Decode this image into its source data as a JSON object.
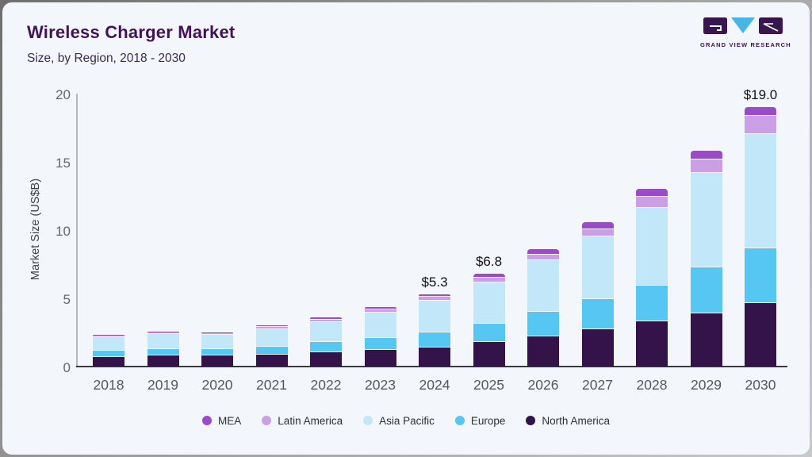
{
  "header": {
    "title": "Wireless Charger Market",
    "subtitle": "Size, by Region, 2018 - 2030",
    "logo_brand": "GRAND VIEW RESEARCH"
  },
  "colors": {
    "panel_bg": "#f3f6fa",
    "title_text": "#421359",
    "logo_purple": "#3a1650",
    "logo_blue": "#45b6e6",
    "axis_line": "#3a3940",
    "gridless_axis": "#b2b7bc"
  },
  "chart_data": {
    "type": "bar",
    "stacked": true,
    "title": "Wireless Charger Market",
    "subtitle": "Size, by Region, 2018 - 2030",
    "xlabel": "",
    "ylabel": "Market Size (US$B)",
    "ylim": [
      0,
      20
    ],
    "yticks": [
      0,
      5,
      10,
      15,
      20
    ],
    "grid": false,
    "legend_position": "bottom",
    "categories": [
      "2018",
      "2019",
      "2020",
      "2021",
      "2022",
      "2023",
      "2024",
      "2025",
      "2026",
      "2027",
      "2028",
      "2029",
      "2030"
    ],
    "series": [
      {
        "name": "North America",
        "color": "#331349",
        "values": [
          0.7,
          0.8,
          0.8,
          0.85,
          1.05,
          1.2,
          1.4,
          1.8,
          2.2,
          2.75,
          3.3,
          3.9,
          4.65
        ]
      },
      {
        "name": "Europe",
        "color": "#56c7f2",
        "values": [
          0.45,
          0.5,
          0.5,
          0.6,
          0.75,
          0.9,
          1.1,
          1.35,
          1.8,
          2.2,
          2.65,
          3.35,
          4.0
        ]
      },
      {
        "name": "Asia Pacific",
        "color": "#c2e7f8",
        "values": [
          1.0,
          1.1,
          1.05,
          1.3,
          1.45,
          1.85,
          2.3,
          3.0,
          3.8,
          4.6,
          5.7,
          6.95,
          8.4
        ]
      },
      {
        "name": "Latin America",
        "color": "#cb9fe5",
        "values": [
          0.1,
          0.1,
          0.1,
          0.15,
          0.2,
          0.25,
          0.3,
          0.35,
          0.4,
          0.5,
          0.8,
          1.0,
          1.3
        ]
      },
      {
        "name": "MEA",
        "color": "#9a4bc8",
        "values": [
          0.05,
          0.05,
          0.05,
          0.1,
          0.15,
          0.15,
          0.2,
          0.3,
          0.4,
          0.55,
          0.55,
          0.6,
          0.65
        ]
      }
    ],
    "annotations": [
      {
        "category": "2024",
        "text": "$5.3"
      },
      {
        "category": "2025",
        "text": "$6.8"
      },
      {
        "category": "2030",
        "text": "$19.0"
      }
    ],
    "legend_order": [
      "MEA",
      "Latin America",
      "Asia Pacific",
      "Europe",
      "North America"
    ]
  }
}
